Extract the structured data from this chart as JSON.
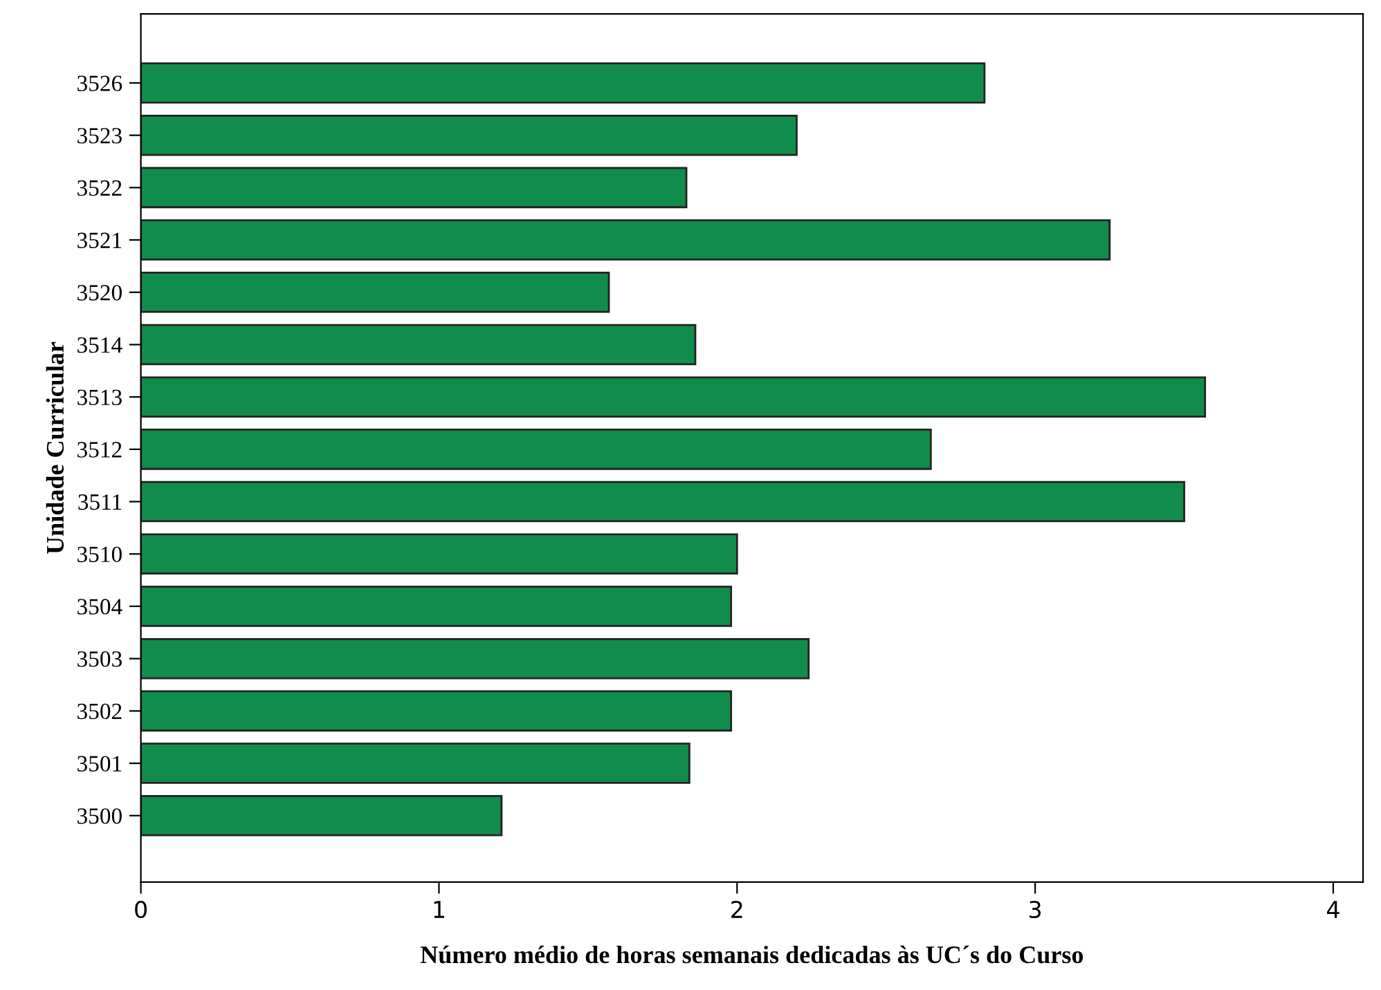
{
  "chart_data": {
    "type": "bar",
    "orientation": "horizontal",
    "xlabel": "Número médio de horas semanais dedicadas às UC´s do Curso",
    "ylabel": "Unidade Curricular",
    "categories": [
      "3526",
      "3523",
      "3522",
      "3521",
      "3520",
      "3514",
      "3513",
      "3512",
      "3511",
      "3510",
      "3504",
      "3503",
      "3502",
      "3501",
      "3500"
    ],
    "values": [
      2.83,
      2.2,
      1.83,
      3.25,
      1.57,
      1.86,
      3.57,
      2.65,
      3.5,
      2.0,
      1.98,
      2.24,
      1.98,
      1.84,
      1.21
    ],
    "color": "#128c4a",
    "xlim": [
      0,
      4.1
    ],
    "xticks": [
      0,
      1,
      2,
      3,
      4
    ],
    "grid": false,
    "legend": false
  }
}
